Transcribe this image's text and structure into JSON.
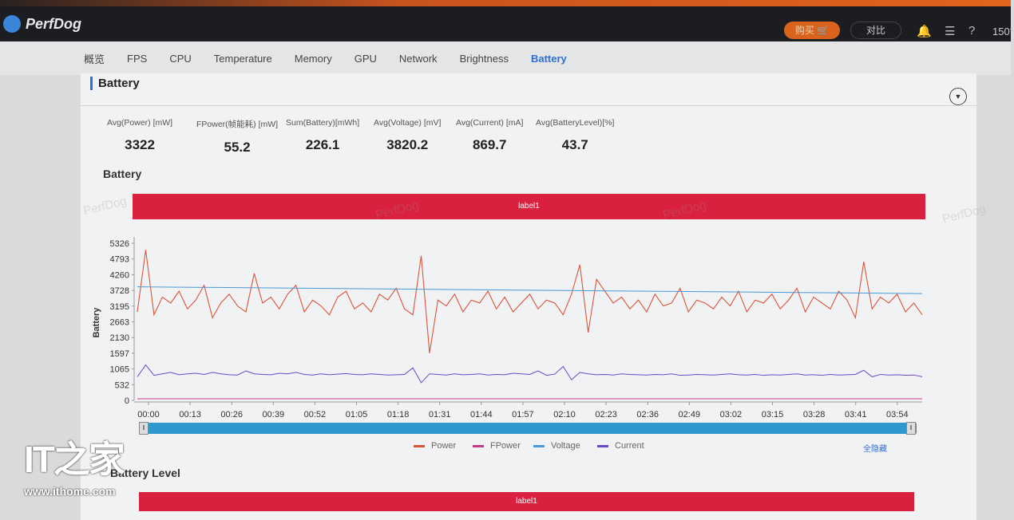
{
  "app": {
    "name": "PerfDog",
    "buy_label": "购买",
    "compare_label": "对比",
    "zoom_readout": "150*"
  },
  "nav": {
    "tabs": [
      "概览",
      "FPS",
      "CPU",
      "Temperature",
      "Memory",
      "GPU",
      "Network",
      "Brightness",
      "Battery"
    ],
    "active": "Battery"
  },
  "section_title": "Battery",
  "stats": [
    {
      "label": "Avg(Power) [mW]",
      "value": "3322"
    },
    {
      "label": "FPower(帧能耗) [mW]",
      "value": "55.2"
    },
    {
      "label": "Sum(Battery)[mWh]",
      "value": "226.1"
    },
    {
      "label": "Avg(Voltage) [mV]",
      "value": "3820.2"
    },
    {
      "label": "Avg(Current) [mA]",
      "value": "869.7"
    },
    {
      "label": "Avg(BatteryLevel)[%]",
      "value": "43.7"
    }
  ],
  "battery_chart": {
    "title": "Battery",
    "label_bar": "label1",
    "watermark": "PerfDog"
  },
  "battery_level": {
    "title": "Battery Level",
    "label_bar": "label1"
  },
  "hide_all_label": "全隐藏",
  "watermark_site": {
    "logo": "IT之家",
    "url": "www.ithome.com"
  },
  "colors": {
    "power": "#d9553a",
    "fpower": "#c8388a",
    "voltage": "#4a9ad8",
    "current": "#6a48c8",
    "label_bar": "#d9203f",
    "accent": "#2e6fd6"
  },
  "chart_data": {
    "type": "line",
    "ylabel": "Battery",
    "y_ticks": [
      0,
      532,
      1065,
      1597,
      2130,
      2663,
      3195,
      3728,
      4260,
      4793,
      5326
    ],
    "ylim": [
      0,
      5326
    ],
    "x_ticks": [
      "00:00",
      "00:13",
      "00:26",
      "00:39",
      "00:52",
      "01:05",
      "01:18",
      "01:31",
      "01:44",
      "01:57",
      "02:10",
      "02:23",
      "02:36",
      "02:49",
      "03:02",
      "03:15",
      "03:28",
      "03:41",
      "03:54"
    ],
    "x_range_seconds": [
      0,
      243
    ],
    "legend": [
      "Power",
      "FPower",
      "Voltage",
      "Current"
    ],
    "legend_position": "bottom",
    "series": [
      {
        "name": "Power",
        "values": [
          3000,
          5100,
          2900,
          3500,
          3300,
          3700,
          3100,
          3400,
          3900,
          2800,
          3300,
          3600,
          3200,
          3000,
          4300,
          3300,
          3500,
          3100,
          3600,
          3900,
          3000,
          3400,
          3200,
          2900,
          3500,
          3700,
          3100,
          3300,
          3000,
          3600,
          3400,
          3800,
          3100,
          2900,
          4900,
          1600,
          3400,
          3200,
          3600,
          3000,
          3400,
          3300,
          3700,
          3100,
          3500,
          3000,
          3300,
          3600,
          3100,
          3400,
          3300,
          2900,
          3600,
          4600,
          2300,
          4100,
          3700,
          3300,
          3500,
          3100,
          3400,
          3000,
          3600,
          3200,
          3300,
          3800,
          3000,
          3400,
          3300,
          3100,
          3500,
          3200,
          3700,
          3000,
          3400,
          3300,
          3600,
          3100,
          3400,
          3800,
          3000,
          3500,
          3300,
          3100,
          3700,
          3400,
          2800,
          4700,
          3100,
          3500,
          3300,
          3600,
          3000,
          3300,
          2900
        ],
        "color": "#d9553a"
      },
      {
        "name": "FPower",
        "values": [
          55,
          55
        ],
        "color": "#c8388a"
      },
      {
        "name": "Voltage",
        "values": [
          3850,
          3620
        ],
        "color": "#4a9ad8"
      },
      {
        "name": "Current",
        "values": [
          800,
          1200,
          850,
          900,
          950,
          870,
          900,
          920,
          880,
          950,
          900,
          870,
          860,
          1000,
          900,
          880,
          870,
          920,
          900,
          950,
          880,
          860,
          900,
          870,
          890,
          910,
          880,
          870,
          900,
          880,
          860,
          870,
          880,
          1100,
          600,
          900,
          880,
          860,
          900,
          870,
          880,
          900,
          860,
          880,
          870,
          920,
          900,
          880,
          1000,
          850,
          890,
          1150,
          700,
          950,
          900,
          870,
          880,
          860,
          900,
          880,
          870,
          860,
          880,
          870,
          900,
          850,
          860,
          880,
          870,
          860,
          880,
          900,
          870,
          860,
          880,
          850,
          870,
          860,
          880,
          900,
          860,
          870,
          850,
          880,
          860,
          870,
          880,
          1020,
          800,
          880,
          860,
          870,
          850,
          860,
          800
        ],
        "color": "#6a48c8"
      }
    ]
  }
}
